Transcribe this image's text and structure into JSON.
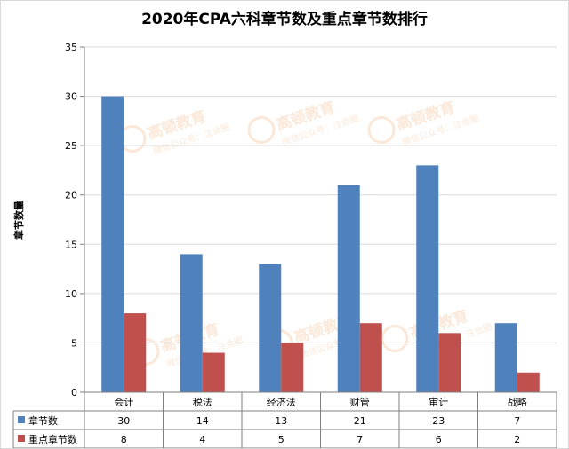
{
  "chart_data": {
    "type": "bar",
    "title": "2020年CPA六科章节数及重点章节数排行",
    "ylabel": "章节数量",
    "xlabel": "",
    "ylim": [
      0,
      35
    ],
    "yticks": [
      0,
      5,
      10,
      15,
      20,
      25,
      30,
      35
    ],
    "grid": true,
    "legend": "data-table",
    "categories": [
      "会计",
      "税法",
      "经济法",
      "财管",
      "审计",
      "战略"
    ],
    "series": [
      {
        "name": "章节数",
        "values": [
          30,
          14,
          13,
          21,
          23,
          7
        ],
        "color": "#4f81bd"
      },
      {
        "name": "重点章节数",
        "values": [
          8,
          4,
          5,
          7,
          6,
          2
        ],
        "color": "#c0504d"
      }
    ]
  },
  "watermark": {
    "brand": "高顿教育",
    "subtitle": "微信公众号：注会圈"
  },
  "colors": {
    "grid": "#d9d9d9",
    "axis": "#7f7f7f"
  }
}
